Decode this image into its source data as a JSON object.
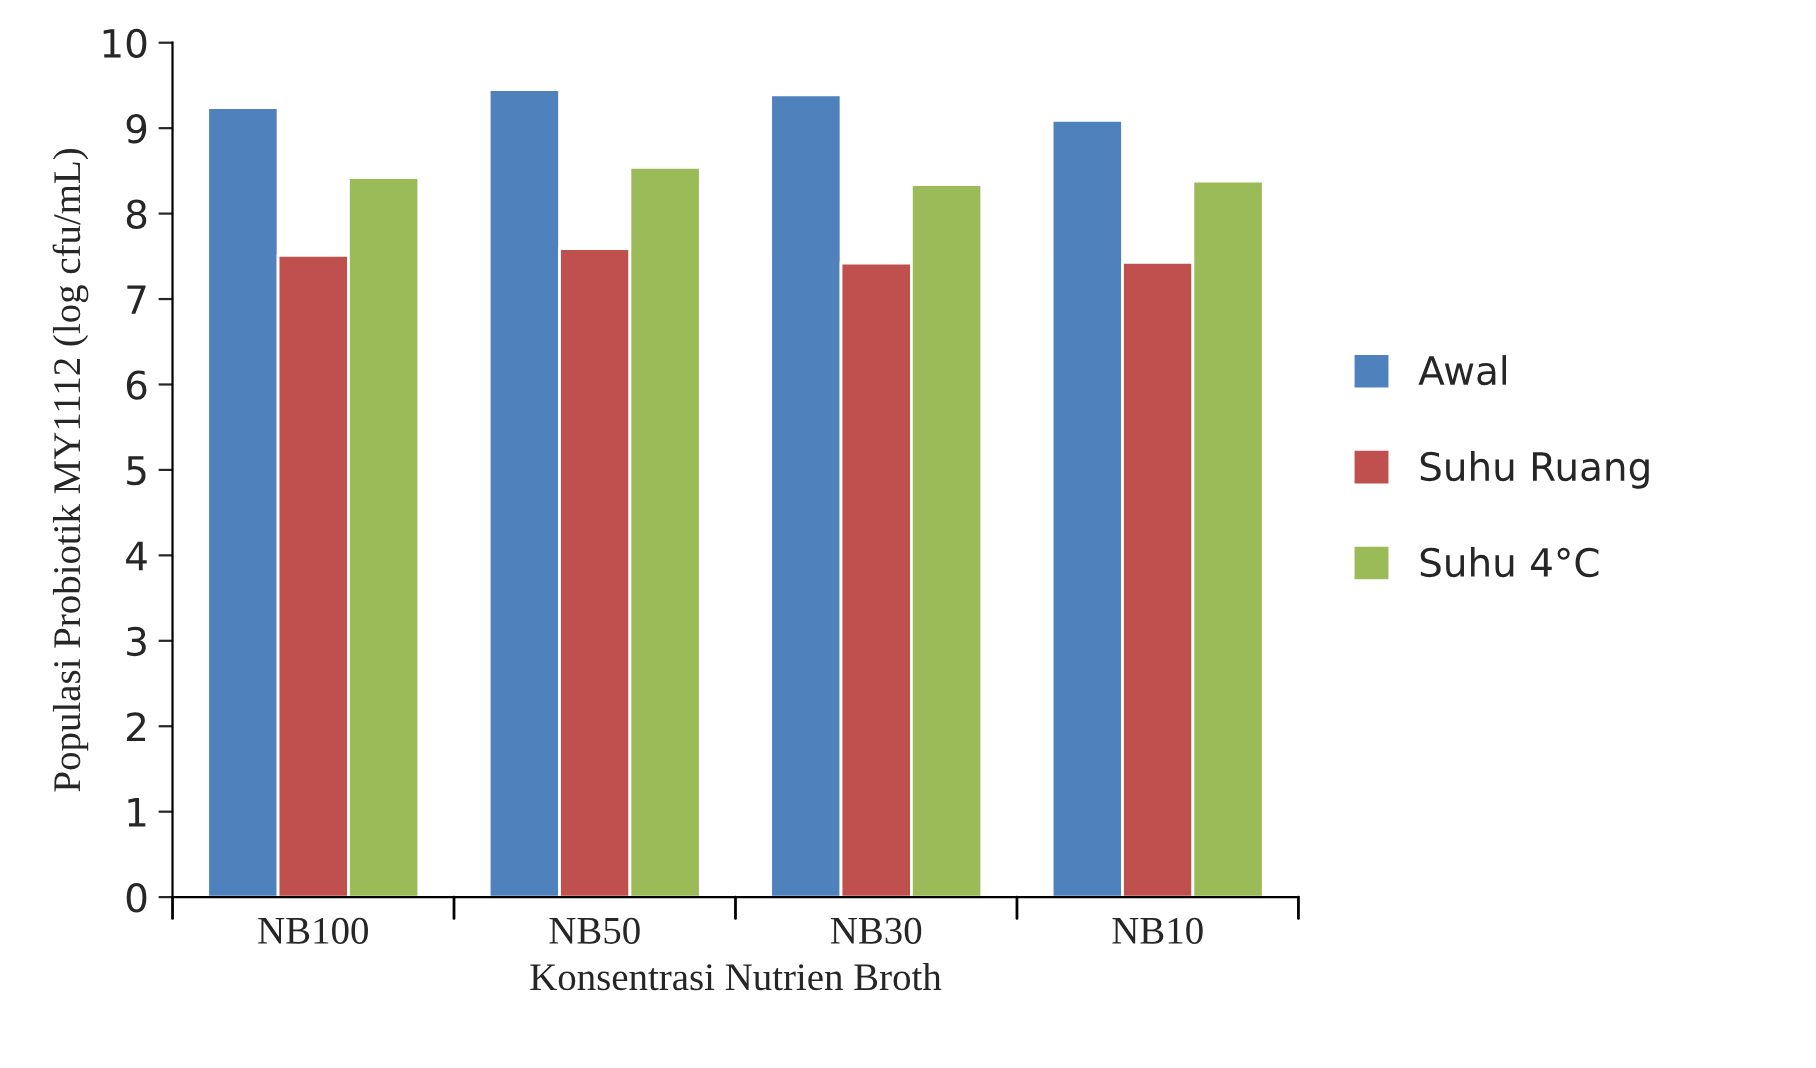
{
  "chart_data": {
    "type": "bar",
    "xlabel": "Konsentrasi Nutrien Broth",
    "ylabel": "Populasi Probiotik MY1112 (log cfu/mL)",
    "categories": [
      "NB100",
      "NB50",
      "NB30",
      "NB10"
    ],
    "series": [
      {
        "name": "Awal",
        "color": "#4f81bd",
        "values": [
          9.24,
          9.45,
          9.39,
          9.09
        ]
      },
      {
        "name": "Suhu Ruang",
        "color": "#c0504d",
        "values": [
          7.51,
          7.59,
          7.42,
          7.43
        ]
      },
      {
        "name": "Suhu 4°C",
        "color": "#9bbb59",
        "values": [
          8.42,
          8.54,
          8.34,
          8.38
        ]
      }
    ],
    "ylim": [
      0,
      10
    ],
    "yticks": [
      0,
      1,
      2,
      3,
      4,
      5,
      6,
      7,
      8,
      9,
      10
    ],
    "grid": false,
    "legend": "right"
  }
}
